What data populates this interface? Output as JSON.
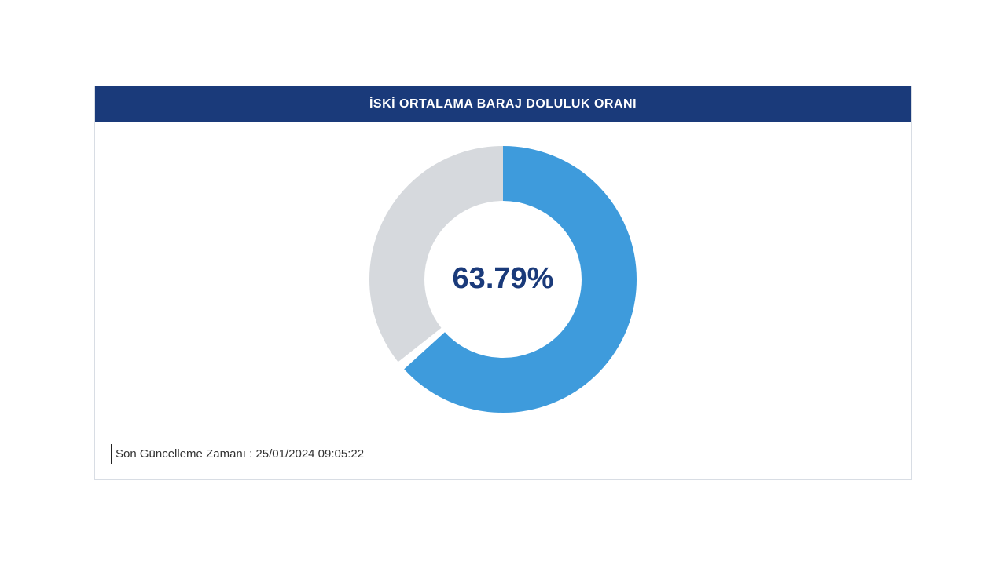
{
  "card": {
    "title": "İSKİ ORTALAMA BARAJ DOLULUK ORANI",
    "header_bg": "#1a3a7a",
    "header_text_color": "#ffffff",
    "border_color": "#d8dde4"
  },
  "donut_chart": {
    "type": "donut",
    "percent": 63.79,
    "display_percent": "63.79%",
    "filled_color": "#3e9bdc",
    "empty_color": "#d6d9dd",
    "center_text_color": "#1a3a7a",
    "center_fontsize": 38,
    "size": 340,
    "stroke_width": 70,
    "gap_degrees": 2,
    "background_color": "#ffffff"
  },
  "footer": {
    "label": "Son Güncelleme Zamanı :",
    "value": " 25/01/2024 09:05:22"
  }
}
